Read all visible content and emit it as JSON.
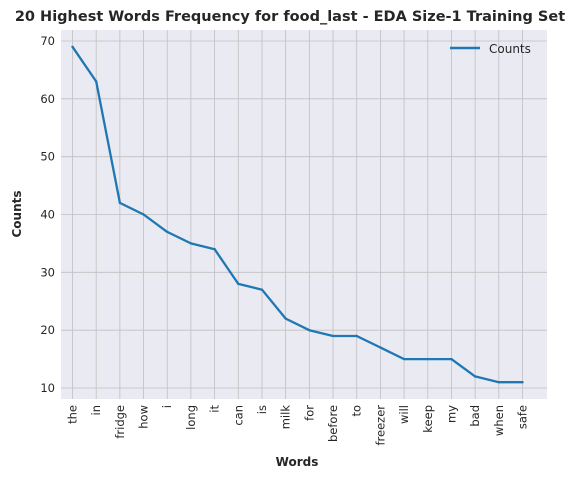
{
  "chart_data": {
    "type": "line",
    "title": "20 Highest Words Frequency for food_last - EDA Size-1 Training Set",
    "xlabel": "Words",
    "ylabel": "Counts",
    "categories": [
      "the",
      "in",
      "fridge",
      "how",
      "i",
      "long",
      "it",
      "can",
      "is",
      "milk",
      "for",
      "before",
      "to",
      "freezer",
      "will",
      "keep",
      "my",
      "bad",
      "when",
      "safe"
    ],
    "series": [
      {
        "name": "Counts",
        "values": [
          69,
          63,
          42,
          40,
          37,
          35,
          34,
          28,
          27,
          22,
          20,
          19,
          19,
          17,
          15,
          15,
          15,
          12,
          11,
          11
        ]
      }
    ],
    "ylim": [
      8.1,
      71.9
    ],
    "yticks": [
      10,
      20,
      30,
      40,
      50,
      60,
      70
    ],
    "grid": true,
    "legend_position": "top-right",
    "colors": {
      "line": "#1f77b4",
      "plot_background": "#eaeaf2",
      "grid": "#c0c0c0",
      "text": "#262626"
    }
  }
}
